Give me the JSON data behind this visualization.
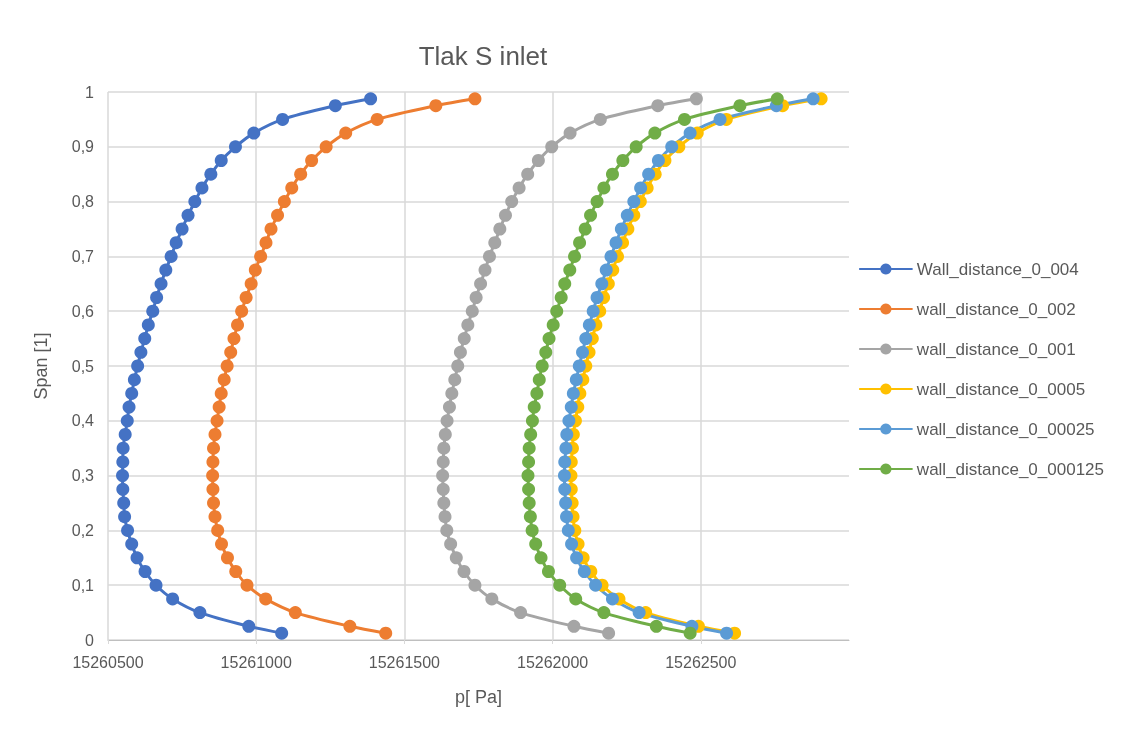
{
  "chart_data": {
    "type": "line",
    "title": "Tlak S inlet",
    "xlabel": "p[ Pa]",
    "ylabel": "Span [1]",
    "series": [
      {
        "name": "Wall_distance_0_004",
        "color": "#4472c4",
        "x": [
          15261386,
          15261267,
          15261089,
          15260992,
          15260930,
          15260882,
          15260847,
          15260817,
          15260793,
          15260770,
          15260750,
          15260730,
          15260713,
          15260695,
          15260679,
          15260664,
          15260651,
          15260636,
          15260624,
          15260611,
          15260600,
          15260589,
          15260580,
          15260571,
          15260565,
          15260558,
          15260551,
          15260550,
          15260549,
          15260550,
          15260553,
          15260556,
          15260566,
          15260580,
          15260598,
          15260625,
          15260662,
          15260718,
          15260810,
          15260975,
          15261086
        ],
        "values": [
          0.9875,
          0.975,
          0.95,
          0.925,
          0.9,
          0.875,
          0.85,
          0.825,
          0.8,
          0.775,
          0.75,
          0.725,
          0.7,
          0.675,
          0.65,
          0.625,
          0.6,
          0.575,
          0.55,
          0.525,
          0.5,
          0.475,
          0.45,
          0.425,
          0.4,
          0.375,
          0.35,
          0.325,
          0.3,
          0.275,
          0.25,
          0.225,
          0.2,
          0.175,
          0.15,
          0.125,
          0.1,
          0.075,
          0.05,
          0.025,
          0.0125
        ]
      },
      {
        "name": "wall_distance_0_002",
        "color": "#ed7d31",
        "x": [
          15261738,
          15261606,
          15261408,
          15261302,
          15261236,
          15261187,
          15261150,
          15261120,
          15261095,
          15261072,
          15261050,
          15261033,
          15261015,
          15260997,
          15260983,
          15260966,
          15260951,
          15260937,
          15260925,
          15260914,
          15260902,
          15260892,
          15260882,
          15260875,
          15260868,
          15260861,
          15260856,
          15260854,
          15260853,
          15260854,
          15260856,
          15260861,
          15260870,
          15260883,
          15260903,
          15260931,
          15260969,
          15261032,
          15261132,
          15261316,
          15261437
        ],
        "values": [
          0.9875,
          0.975,
          0.95,
          0.925,
          0.9,
          0.875,
          0.85,
          0.825,
          0.8,
          0.775,
          0.75,
          0.725,
          0.7,
          0.675,
          0.65,
          0.625,
          0.6,
          0.575,
          0.55,
          0.525,
          0.5,
          0.475,
          0.45,
          0.425,
          0.4,
          0.375,
          0.35,
          0.325,
          0.3,
          0.275,
          0.25,
          0.225,
          0.2,
          0.175,
          0.15,
          0.125,
          0.1,
          0.075,
          0.05,
          0.025,
          0.0125
        ]
      },
      {
        "name": "wall_distance_0_001",
        "color": "#a5a5a5",
        "x": [
          15262485,
          15262355,
          15262161,
          15262059,
          15261997,
          15261952,
          15261916,
          15261887,
          15261862,
          15261841,
          15261822,
          15261805,
          15261787,
          15261772,
          15261757,
          15261742,
          15261729,
          15261714,
          15261702,
          15261689,
          15261680,
          15261670,
          15261660,
          15261652,
          15261644,
          15261638,
          15261633,
          15261631,
          15261629,
          15261631,
          15261633,
          15261637,
          15261643,
          15261656,
          15261675,
          15261701,
          15261738,
          15261795,
          15261892,
          15262072,
          15262189
        ],
        "values": [
          0.9875,
          0.975,
          0.95,
          0.925,
          0.9,
          0.875,
          0.85,
          0.825,
          0.8,
          0.775,
          0.75,
          0.725,
          0.7,
          0.675,
          0.65,
          0.625,
          0.6,
          0.575,
          0.55,
          0.525,
          0.5,
          0.475,
          0.45,
          0.425,
          0.4,
          0.375,
          0.35,
          0.325,
          0.3,
          0.275,
          0.25,
          0.225,
          0.2,
          0.175,
          0.15,
          0.125,
          0.1,
          0.075,
          0.05,
          0.025,
          0.0125
        ]
      },
      {
        "name": "wall_distance_0_0005",
        "color": "#ffc000",
        "x": [
          15262906,
          15262776,
          15262586,
          15262488,
          15262426,
          15262379,
          15262346,
          15262319,
          15262296,
          15262274,
          15262254,
          15262236,
          15262219,
          15262203,
          15262188,
          15262172,
          15262159,
          15262146,
          15262134,
          15262123,
          15262112,
          15262102,
          15262092,
          15262085,
          15262077,
          15262070,
          15262067,
          15262063,
          15262062,
          15262063,
          15262066,
          15262069,
          15262075,
          15262086,
          15262103,
          15262129,
          15262167,
          15262224,
          15262314,
          15262492,
          15262614
        ],
        "values": [
          0.9875,
          0.975,
          0.95,
          0.925,
          0.9,
          0.875,
          0.85,
          0.825,
          0.8,
          0.775,
          0.75,
          0.725,
          0.7,
          0.675,
          0.65,
          0.625,
          0.6,
          0.575,
          0.55,
          0.525,
          0.5,
          0.475,
          0.45,
          0.425,
          0.4,
          0.375,
          0.35,
          0.325,
          0.3,
          0.275,
          0.25,
          0.225,
          0.2,
          0.175,
          0.15,
          0.125,
          0.1,
          0.075,
          0.05,
          0.025,
          0.0125
        ]
      },
      {
        "name": "wall_distance_0_00025",
        "color": "#5b9bd5",
        "x": [
          15262879,
          15262755,
          15262565,
          15262464,
          15262402,
          15262357,
          15262324,
          15262297,
          15262274,
          15262252,
          15262232,
          15262214,
          15262197,
          15262181,
          15262166,
          15262150,
          15262137,
          15262124,
          15262112,
          15262101,
          15262090,
          15262080,
          15262070,
          15262063,
          15262055,
          15262048,
          15262045,
          15262041,
          15262040,
          15262041,
          15262044,
          15262047,
          15262053,
          15262064,
          15262081,
          15262107,
          15262145,
          15262202,
          15262292,
          15262470,
          15262587
        ],
        "values": [
          0.9875,
          0.975,
          0.95,
          0.925,
          0.9,
          0.875,
          0.85,
          0.825,
          0.8,
          0.775,
          0.75,
          0.725,
          0.7,
          0.675,
          0.65,
          0.625,
          0.6,
          0.575,
          0.55,
          0.525,
          0.5,
          0.475,
          0.45,
          0.425,
          0.4,
          0.375,
          0.35,
          0.325,
          0.3,
          0.275,
          0.25,
          0.225,
          0.2,
          0.175,
          0.15,
          0.125,
          0.1,
          0.075,
          0.05,
          0.025,
          0.0125
        ]
      },
      {
        "name": "wall_distance_0_000125",
        "color": "#70ad47",
        "x": [
          15262758,
          15262632,
          15262445,
          15262345,
          15262282,
          15262237,
          15262202,
          15262173,
          15262150,
          15262128,
          15262110,
          15262091,
          15262074,
          15262058,
          15262041,
          15262029,
          15262014,
          15262002,
          15261988,
          15261977,
          15261965,
          15261955,
          15261947,
          15261938,
          15261932,
          15261926,
          15261921,
          15261919,
          15261917,
          15261919,
          15261921,
          15261925,
          15261931,
          15261943,
          15261961,
          15261986,
          15262024,
          15262078,
          15262173,
          15262350,
          15262464
        ],
        "values": [
          0.9875,
          0.975,
          0.95,
          0.925,
          0.9,
          0.875,
          0.85,
          0.825,
          0.8,
          0.775,
          0.75,
          0.725,
          0.7,
          0.675,
          0.65,
          0.625,
          0.6,
          0.575,
          0.55,
          0.525,
          0.5,
          0.475,
          0.45,
          0.425,
          0.4,
          0.375,
          0.35,
          0.325,
          0.3,
          0.275,
          0.25,
          0.225,
          0.2,
          0.175,
          0.15,
          0.125,
          0.1,
          0.075,
          0.05,
          0.025,
          0.0125
        ]
      }
    ],
    "xlim": [
      15260500,
      15263000
    ],
    "xticks": [
      15260500,
      15261000,
      15261500,
      15262000,
      15262500
    ],
    "ylim": [
      0,
      1
    ],
    "yticks": [
      0,
      {
        "value": 0.1,
        "label": "0,1"
      },
      {
        "value": 0.2,
        "label": "0,2"
      },
      {
        "value": 0.3,
        "label": "0,3"
      },
      {
        "value": 0.4,
        "label": "0,4"
      },
      {
        "value": 0.5,
        "label": "0,5"
      },
      {
        "value": 0.6,
        "label": "0,6"
      },
      {
        "value": 0.7,
        "label": "0,7"
      },
      {
        "value": 0.8,
        "label": "0,8"
      },
      {
        "value": 0.9,
        "label": "0,9"
      },
      1
    ],
    "grid": true,
    "legend": "right",
    "marker": "circle",
    "line_style": "solid"
  }
}
